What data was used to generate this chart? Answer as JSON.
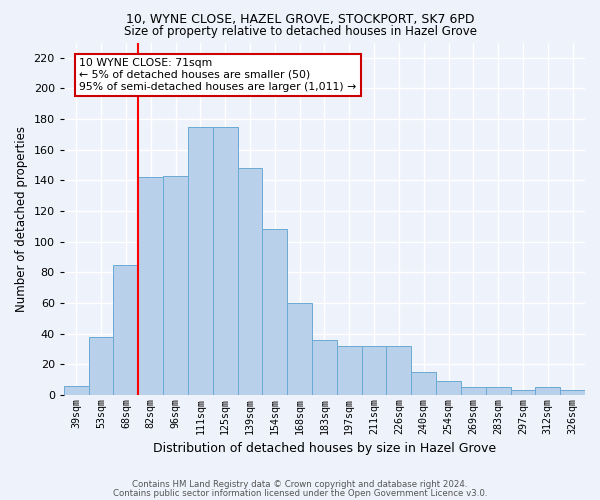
{
  "title_line1": "10, WYNE CLOSE, HAZEL GROVE, STOCKPORT, SK7 6PD",
  "title_line2": "Size of property relative to detached houses in Hazel Grove",
  "xlabel": "Distribution of detached houses by size in Hazel Grove",
  "ylabel": "Number of detached properties",
  "footnote1": "Contains HM Land Registry data © Crown copyright and database right 2024.",
  "footnote2": "Contains public sector information licensed under the Open Government Licence v3.0.",
  "categories": [
    "39sqm",
    "53sqm",
    "68sqm",
    "82sqm",
    "96sqm",
    "111sqm",
    "125sqm",
    "139sqm",
    "154sqm",
    "168sqm",
    "183sqm",
    "197sqm",
    "211sqm",
    "226sqm",
    "240sqm",
    "254sqm",
    "269sqm",
    "283sqm",
    "297sqm",
    "312sqm",
    "326sqm"
  ],
  "values": [
    6,
    38,
    85,
    142,
    143,
    175,
    175,
    148,
    108,
    60,
    36,
    32,
    32,
    32,
    15,
    9,
    5,
    5,
    3,
    5,
    3
  ],
  "bar_color": "#b8d0ea",
  "bar_edge_color": "#6aaad4",
  "background_color": "#eef2fa",
  "grid_color": "#ffffff",
  "red_line_index": 2,
  "annotation_text": "10 WYNE CLOSE: 71sqm\n← 5% of detached houses are smaller (50)\n95% of semi-detached houses are larger (1,011) →",
  "annotation_box_color": "#ffffff",
  "annotation_box_edge_color": "#cc0000",
  "ylim": [
    0,
    230
  ],
  "yticks": [
    0,
    20,
    40,
    60,
    80,
    100,
    120,
    140,
    160,
    180,
    200,
    220
  ]
}
